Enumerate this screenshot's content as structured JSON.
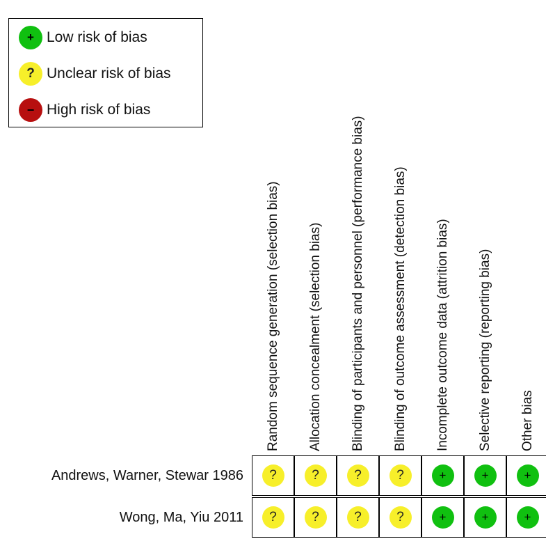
{
  "legend": {
    "items": [
      {
        "level": "low",
        "symbol": "+",
        "label": "Low risk of bias"
      },
      {
        "level": "unclear",
        "symbol": "?",
        "label": "Unclear risk of bias"
      },
      {
        "level": "high",
        "symbol": "−",
        "label": "High risk of bias"
      }
    ]
  },
  "colors": {
    "low": "#10c010",
    "unclear": "#f7ef2a",
    "high": "#b70f0f"
  },
  "chart_data": {
    "type": "table",
    "columns": [
      "Random sequence generation (selection bias)",
      "Allocation concealment (selection bias)",
      "Blinding of participants and personnel (performance bias)",
      "Blinding of outcome assessment (detection bias)",
      "Incomplete outcome data (attrition bias)",
      "Selective reporting (reporting bias)",
      "Other bias"
    ],
    "rows": [
      {
        "study": "Andrews, Warner, Stewar 1986",
        "judgements": [
          "unclear",
          "unclear",
          "unclear",
          "unclear",
          "low",
          "low",
          "low"
        ]
      },
      {
        "study": "Wong, Ma, Yiu 2011",
        "judgements": [
          "unclear",
          "unclear",
          "unclear",
          "unclear",
          "low",
          "low",
          "low"
        ]
      }
    ],
    "symbols": {
      "low": "+",
      "unclear": "?",
      "high": "−"
    }
  }
}
